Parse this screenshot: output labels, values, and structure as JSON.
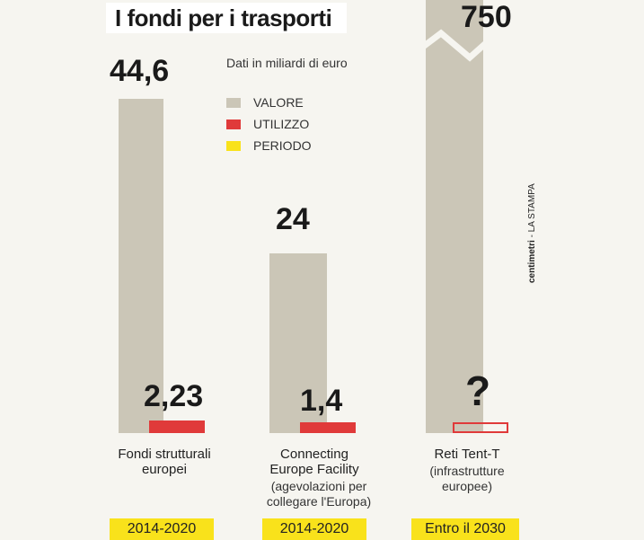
{
  "header": {
    "title": "I fondi per i trasporti"
  },
  "legend": {
    "note": "Dati in miliardi di euro",
    "items": [
      {
        "label": "VALORE",
        "color": "#cbc6b7"
      },
      {
        "label": "UTILIZZO",
        "color": "#e03a3a"
      },
      {
        "label": "PERIODO",
        "color": "#f9e21b"
      }
    ]
  },
  "credit": {
    "brand": "centimetri",
    "source": "LA STAMPA"
  },
  "chart_data": {
    "type": "bar",
    "title": "I fondi per i trasporti",
    "unit": "Dati in miliardi di euro",
    "categories": [
      "Fondi strutturali europei",
      "Connecting Europe Facility",
      "Reti Tent-T"
    ],
    "subtitles": [
      "",
      "(agevolazioni per collegare l'Europa)",
      "(infrastrutture europee)"
    ],
    "periods": [
      "2014-2020",
      "2014-2020",
      "Entro il 2030"
    ],
    "series": [
      {
        "name": "VALORE",
        "values": [
          44.6,
          24,
          750
        ],
        "labels": [
          "44,6",
          "24",
          "750"
        ]
      },
      {
        "name": "UTILIZZO",
        "values": [
          2.23,
          1.4,
          null
        ],
        "labels": [
          "2,23",
          "1,4",
          "?"
        ]
      }
    ],
    "axis_break": "between 44,6 and 750",
    "grid": false
  }
}
